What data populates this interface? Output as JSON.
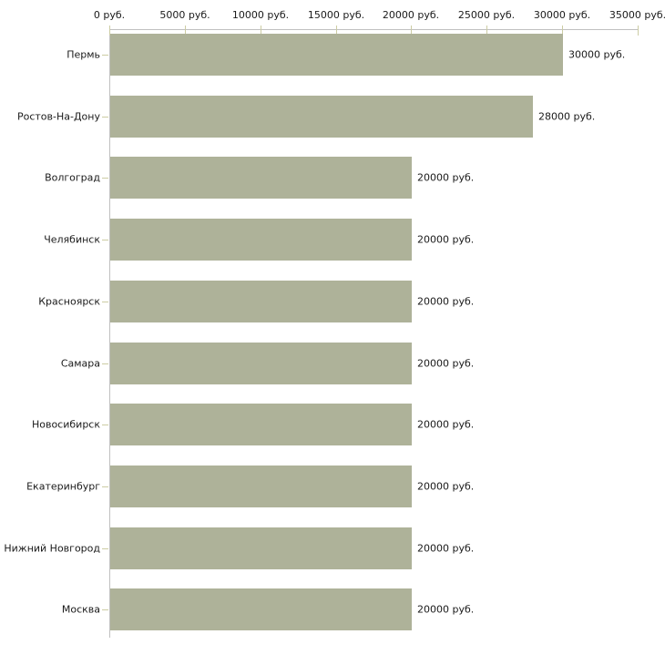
{
  "chart_data": {
    "type": "bar",
    "orientation": "horizontal",
    "title": "",
    "xlabel": "",
    "ylabel": "",
    "unit": "руб.",
    "xlim": [
      0,
      35000
    ],
    "grid": false,
    "legend": "none",
    "categories": [
      "Пермь",
      "Ростов-На-Дону",
      "Волгоград",
      "Челябинск",
      "Красноярск",
      "Самара",
      "Новосибирск",
      "Екатеринбург",
      "Нижний Новгород",
      "Москва"
    ],
    "values": [
      30000,
      28000,
      20000,
      20000,
      20000,
      20000,
      20000,
      20000,
      20000,
      20000
    ],
    "value_labels": [
      "30000 руб.",
      "28000 руб.",
      "20000 руб.",
      "20000 руб.",
      "20000 руб.",
      "20000 руб.",
      "20000 руб.",
      "20000 руб.",
      "20000 руб.",
      "20000 руб."
    ],
    "x_ticks": [
      0,
      5000,
      10000,
      15000,
      20000,
      25000,
      30000,
      35000
    ],
    "x_tick_labels": [
      "0 руб.",
      "5000 руб.",
      "10000 руб.",
      "15000 руб.",
      "20000 руб.",
      "25000 руб.",
      "30000 руб.",
      "35000 руб."
    ],
    "colors": {
      "bar": "#aeb299",
      "axis_line": "#c0c0c0",
      "tick_mark": "#ccccA3",
      "text": "#1a1a1a",
      "background": "#ffffff"
    }
  }
}
